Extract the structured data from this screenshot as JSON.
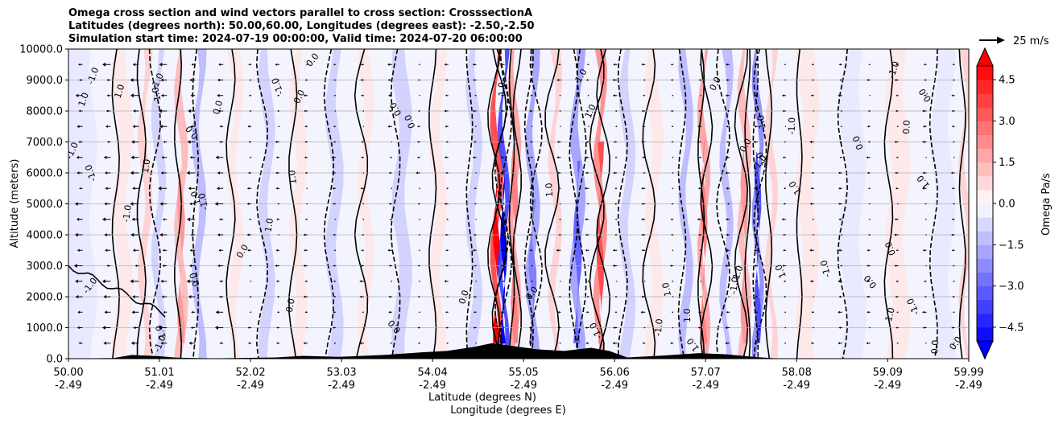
{
  "chart_data": {
    "type": "heatmap",
    "title_lines": [
      "Omega cross section and wind vectors parallel to cross section: CrosssectionA",
      "Latitudes (degrees north): 50.00,60.00, Longitudes (degrees east): -2.50,-2.50",
      "Simulation start time: 2024-07-19 00:00:00, Valid time: 2024-07-20 06:00:00"
    ],
    "xlabel_lines": [
      "Latitude (degrees N)",
      "Longitude (degrees E)"
    ],
    "ylabel": "Altitude (meters)",
    "x_ticks": [
      {
        "lat": "50.00",
        "lon": "-2.49"
      },
      {
        "lat": "51.01",
        "lon": "-2.49"
      },
      {
        "lat": "52.02",
        "lon": "-2.49"
      },
      {
        "lat": "53.03",
        "lon": "-2.49"
      },
      {
        "lat": "54.04",
        "lon": "-2.49"
      },
      {
        "lat": "55.05",
        "lon": "-2.49"
      },
      {
        "lat": "56.06",
        "lon": "-2.49"
      },
      {
        "lat": "57.07",
        "lon": "-2.49"
      },
      {
        "lat": "58.08",
        "lon": "-2.49"
      },
      {
        "lat": "59.09",
        "lon": "-2.49"
      },
      {
        "lat": "59.99",
        "lon": "-2.49"
      }
    ],
    "y_ticks": [
      "0.0",
      "1000.0",
      "2000.0",
      "3000.0",
      "4000.0",
      "5000.0",
      "6000.0",
      "7000.0",
      "8000.0",
      "9000.0",
      "10000.0"
    ],
    "xlim": [
      50.0,
      59.99
    ],
    "ylim": [
      0,
      10000
    ],
    "grid": "horizontal",
    "colorbar": {
      "label": "Omega Pa/s",
      "ticks": [
        "4.5",
        "3.0",
        "1.5",
        "0.0",
        "−1.5",
        "−3.0",
        "−4.5"
      ],
      "range": [
        -5.0,
        5.0
      ],
      "levels": 20,
      "extend": "both",
      "cmap": "bwr"
    },
    "quiver_key": "25 m/s",
    "contour_labels": [
      "-1.0",
      "0.0",
      "1.0"
    ],
    "omega_bands": [
      {
        "lat": 50.0,
        "w": 0.55,
        "v": -0.3
      },
      {
        "lat": 50.6,
        "w": 0.15,
        "v": 0.5
      },
      {
        "lat": 50.85,
        "w": 0.08,
        "v": 1.2
      },
      {
        "lat": 51.0,
        "w": 0.08,
        "v": -1.0
      },
      {
        "lat": 51.25,
        "w": 0.07,
        "v": 1.5
      },
      {
        "lat": 51.45,
        "w": 0.08,
        "v": -1.3
      },
      {
        "lat": 51.85,
        "w": 0.1,
        "v": 0.6
      },
      {
        "lat": 52.2,
        "w": 0.1,
        "v": -0.8
      },
      {
        "lat": 52.55,
        "w": 0.12,
        "v": 0.7
      },
      {
        "lat": 52.95,
        "w": 0.12,
        "v": -1.2
      },
      {
        "lat": 53.3,
        "w": 0.1,
        "v": 0.5
      },
      {
        "lat": 53.7,
        "w": 0.14,
        "v": -0.9
      },
      {
        "lat": 54.1,
        "w": 0.12,
        "v": 0.6
      },
      {
        "lat": 54.5,
        "w": 0.1,
        "v": -0.8
      },
      {
        "lat": 54.75,
        "w": 0.06,
        "v": 4.0
      },
      {
        "lat": 54.83,
        "w": 0.05,
        "v": -4.0
      },
      {
        "lat": 54.95,
        "w": 0.06,
        "v": 1.8
      },
      {
        "lat": 55.15,
        "w": 0.08,
        "v": -2.0
      },
      {
        "lat": 55.4,
        "w": 0.07,
        "v": 1.2
      },
      {
        "lat": 55.65,
        "w": 0.09,
        "v": -2.2
      },
      {
        "lat": 55.9,
        "w": 0.07,
        "v": 2.5
      },
      {
        "lat": 56.2,
        "w": 0.1,
        "v": -1.0
      },
      {
        "lat": 56.5,
        "w": 0.12,
        "v": 0.7
      },
      {
        "lat": 56.85,
        "w": 0.08,
        "v": -1.4
      },
      {
        "lat": 57.05,
        "w": 0.06,
        "v": 2.0
      },
      {
        "lat": 57.3,
        "w": 0.07,
        "v": -1.3
      },
      {
        "lat": 57.5,
        "w": 0.07,
        "v": 1.7
      },
      {
        "lat": 57.65,
        "w": 0.05,
        "v": -2.5
      },
      {
        "lat": 57.8,
        "w": 0.06,
        "v": 1.0
      },
      {
        "lat": 58.2,
        "w": 0.18,
        "v": 0.3
      },
      {
        "lat": 58.7,
        "w": 0.22,
        "v": -0.6
      },
      {
        "lat": 59.2,
        "w": 0.2,
        "v": 0.3
      },
      {
        "lat": 59.7,
        "w": 0.2,
        "v": -0.5
      },
      {
        "lat": 59.95,
        "w": 0.06,
        "v": 1.2
      }
    ],
    "terrain": [
      {
        "lat": 50.0,
        "alt": 0
      },
      {
        "lat": 50.5,
        "alt": 20
      },
      {
        "lat": 50.7,
        "alt": 120
      },
      {
        "lat": 51.0,
        "alt": 80
      },
      {
        "lat": 51.2,
        "alt": 30
      },
      {
        "lat": 51.6,
        "alt": 10
      },
      {
        "lat": 52.3,
        "alt": 40
      },
      {
        "lat": 52.6,
        "alt": 90
      },
      {
        "lat": 53.0,
        "alt": 60
      },
      {
        "lat": 53.5,
        "alt": 120
      },
      {
        "lat": 53.9,
        "alt": 200
      },
      {
        "lat": 54.2,
        "alt": 250
      },
      {
        "lat": 54.5,
        "alt": 380
      },
      {
        "lat": 54.7,
        "alt": 500
      },
      {
        "lat": 54.9,
        "alt": 420
      },
      {
        "lat": 55.2,
        "alt": 300
      },
      {
        "lat": 55.5,
        "alt": 250
      },
      {
        "lat": 55.8,
        "alt": 350
      },
      {
        "lat": 56.0,
        "alt": 250
      },
      {
        "lat": 56.2,
        "alt": 40
      },
      {
        "lat": 56.6,
        "alt": 100
      },
      {
        "lat": 57.0,
        "alt": 180
      },
      {
        "lat": 57.3,
        "alt": 140
      },
      {
        "lat": 57.6,
        "alt": 60
      },
      {
        "lat": 57.9,
        "alt": 0
      },
      {
        "lat": 59.99,
        "alt": 0
      }
    ],
    "colors": {
      "positive_max": "#ff0000",
      "negative_max": "#0000ff",
      "neutral": "#ffffff",
      "grid": "#b0b0b0"
    }
  }
}
